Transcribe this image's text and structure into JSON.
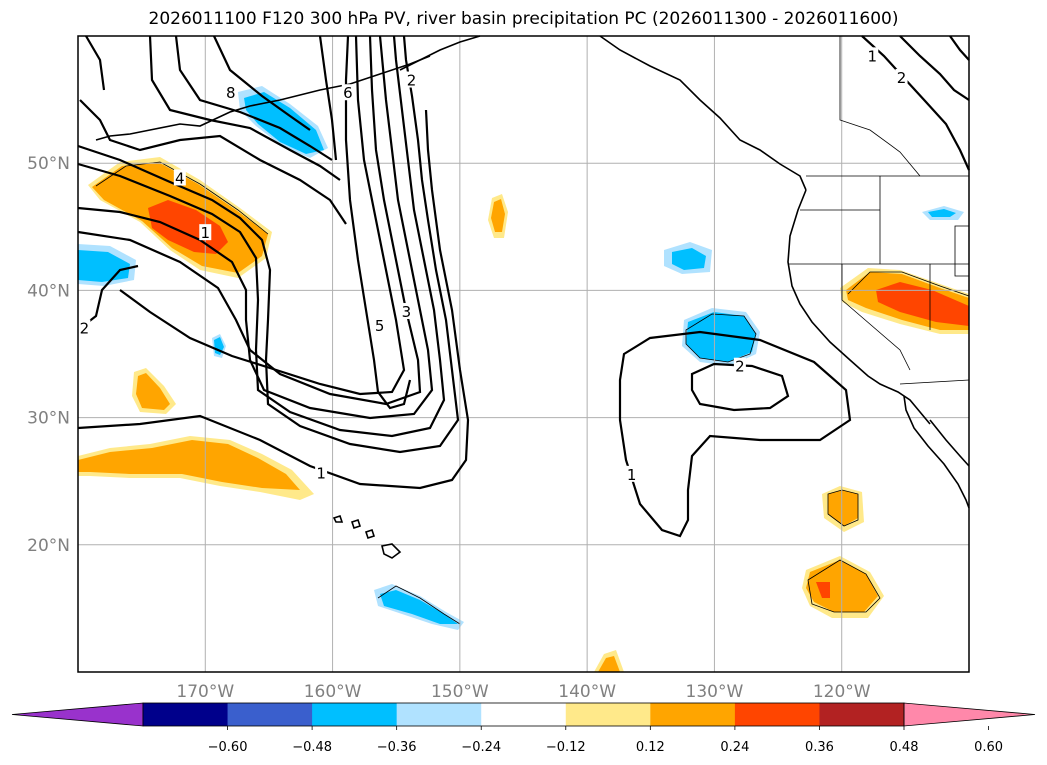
{
  "title": "2026011100 F120 300 hPa PV, river basin precipitation PC (2026011300 - 2026011600)",
  "map": {
    "lon_range": [
      -180,
      -110
    ],
    "lat_range": [
      10,
      60
    ],
    "lat_labels": [
      "50°N",
      "40°N",
      "30°N",
      "20°N"
    ],
    "lat_values": [
      50,
      40,
      30,
      20
    ],
    "lon_labels": [
      "170°W",
      "160°W",
      "150°W",
      "140°W",
      "130°W",
      "120°W"
    ],
    "lon_values": [
      -170,
      -160,
      -150,
      -140,
      -130,
      -120
    ],
    "gridlines": true
  },
  "contour_labels": [
    {
      "text": "8",
      "lon": -168.0,
      "lat": 55.5
    },
    {
      "text": "6",
      "lon": -158.8,
      "lat": 55.5
    },
    {
      "text": "2",
      "lon": -153.8,
      "lat": 56.5
    },
    {
      "text": "4",
      "lon": -172.0,
      "lat": 48.8
    },
    {
      "text": "1",
      "lon": -170.0,
      "lat": 44.5
    },
    {
      "text": "2",
      "lon": -179.5,
      "lat": 37.0
    },
    {
      "text": "5",
      "lon": -156.3,
      "lat": 37.2
    },
    {
      "text": "3",
      "lon": -154.2,
      "lat": 38.3
    },
    {
      "text": "1",
      "lon": -160.9,
      "lat": 25.6
    },
    {
      "text": "2",
      "lon": -128.0,
      "lat": 34.0
    },
    {
      "text": "1",
      "lon": -136.5,
      "lat": 25.5
    },
    {
      "text": "1",
      "lon": -117.6,
      "lat": 58.4
    },
    {
      "text": "2",
      "lon": -115.3,
      "lat": 56.7
    }
  ],
  "colorbar": {
    "ticks": [
      "−0.60",
      "−0.48",
      "−0.36",
      "−0.24",
      "−0.12",
      "0.12",
      "0.24",
      "0.36",
      "0.48",
      "0.60"
    ],
    "colors": [
      "#9932cc",
      "#00008b",
      "#3a5fcd",
      "#00bfff",
      "#b0e2ff",
      "#ffffff",
      "#ffe98a",
      "#ffa500",
      "#ff4500",
      "#b22222",
      "#ff88aa"
    ],
    "extend": "both"
  }
}
